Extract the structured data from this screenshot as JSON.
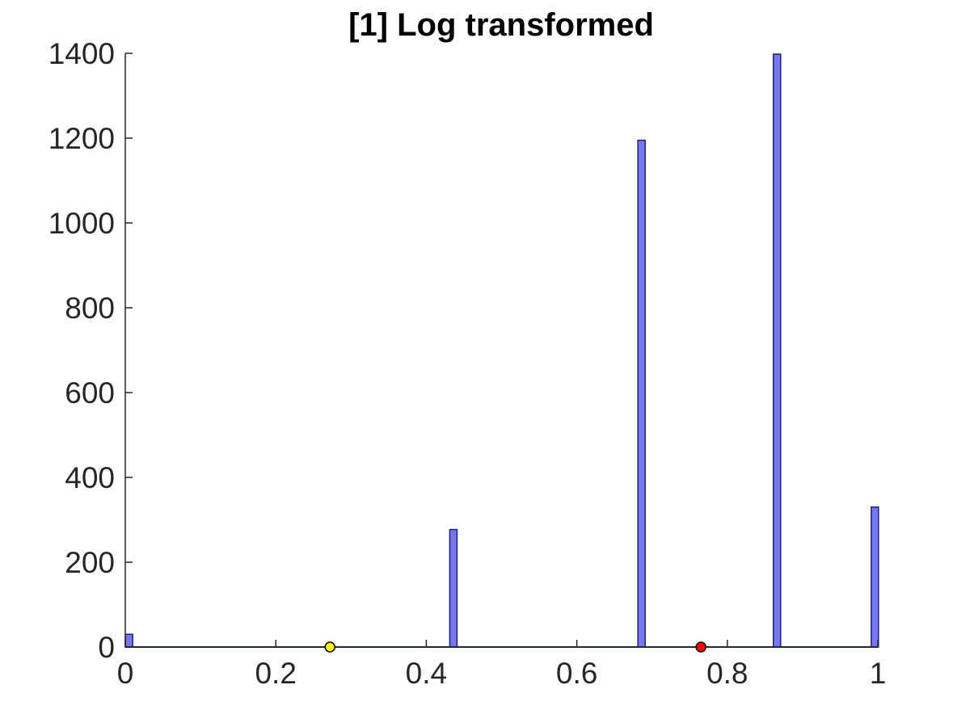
{
  "chart_data": {
    "type": "bar",
    "title": "[1] Log transformed",
    "xlabel": "",
    "ylabel": "",
    "xlim": [
      0,
      1
    ],
    "ylim": [
      0,
      1400
    ],
    "x_ticks": [
      "0",
      "0.2",
      "0.4",
      "0.6",
      "0.8",
      "1"
    ],
    "y_ticks": [
      "0",
      "200",
      "400",
      "600",
      "800",
      "1000",
      "1200",
      "1400"
    ],
    "grid": false,
    "bar_color": "#7777ee",
    "bar_edge_color": "#1f1f7a",
    "bars": [
      {
        "x": 0.005,
        "value": 30
      },
      {
        "x": 0.436,
        "value": 277
      },
      {
        "x": 0.686,
        "value": 1195
      },
      {
        "x": 0.866,
        "value": 1398
      },
      {
        "x": 0.996,
        "value": 330
      }
    ],
    "markers": [
      {
        "x": 0.272,
        "y": 0,
        "color": "#ffff00"
      },
      {
        "x": 0.765,
        "y": 0,
        "color": "#ff0000"
      }
    ]
  }
}
